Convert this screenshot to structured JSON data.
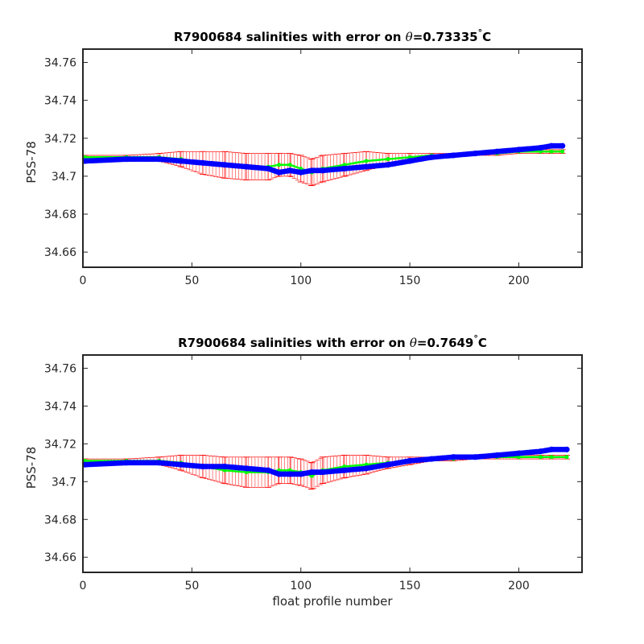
{
  "chart_data": [
    {
      "type": "scatter",
      "title_prefix": "R7900684 salinities with error on ",
      "theta_symbol": "θ",
      "theta_value": "=0.73335",
      "degree_symbol": "°",
      "unit_letter": "C",
      "ylabel": "PSS-78",
      "xlabel": "",
      "xlim": [
        0,
        229
      ],
      "ylim": [
        34.652,
        34.767
      ],
      "xticks": [
        0,
        50,
        100,
        150,
        200
      ],
      "yticks": [
        34.66,
        34.68,
        34.7,
        34.72,
        34.74,
        34.76
      ],
      "ytick_labels": [
        "34.66",
        "34.68",
        "34.7",
        "34.72",
        "34.74",
        "34.76"
      ],
      "grid": false,
      "colors": {
        "float": "#0000ff",
        "mapped": "#00ff00",
        "error": "#ff0000",
        "axes": "#262626"
      },
      "series": [
        {
          "role": "float",
          "x": [
            1,
            20,
            35,
            45,
            55,
            65,
            75,
            85,
            90,
            95,
            100,
            105,
            110,
            120,
            130,
            140,
            150,
            160,
            170,
            180,
            190,
            200,
            210,
            215,
            220
          ],
          "values": [
            34.708,
            34.709,
            34.709,
            34.708,
            34.707,
            34.706,
            34.705,
            34.704,
            34.702,
            34.703,
            34.702,
            34.703,
            34.703,
            34.704,
            34.705,
            34.706,
            34.708,
            34.71,
            34.711,
            34.712,
            34.713,
            34.714,
            34.715,
            34.716,
            34.716
          ]
        },
        {
          "role": "mapped",
          "x": [
            1,
            20,
            35,
            45,
            55,
            65,
            75,
            85,
            90,
            95,
            100,
            105,
            110,
            120,
            130,
            140,
            150,
            160,
            170,
            180,
            190,
            200,
            210,
            215,
            220
          ],
          "values": [
            34.71,
            34.71,
            34.71,
            34.709,
            34.707,
            34.706,
            34.705,
            34.705,
            34.706,
            34.706,
            34.704,
            34.702,
            34.704,
            34.706,
            34.708,
            34.709,
            34.71,
            34.711,
            34.711,
            34.712,
            34.712,
            34.713,
            34.713,
            34.713,
            34.713
          ],
          "error": [
            0.001,
            0.001,
            0.002,
            0.004,
            0.006,
            0.007,
            0.007,
            0.007,
            0.006,
            0.006,
            0.007,
            0.007,
            0.007,
            0.006,
            0.005,
            0.003,
            0.002,
            0.001,
            0.001,
            0.001,
            0.001,
            0.001,
            0.001,
            0.001,
            0.001
          ]
        }
      ]
    },
    {
      "type": "scatter",
      "title_prefix": "R7900684 salinities with error on ",
      "theta_symbol": "θ",
      "theta_value": "=0.7649",
      "degree_symbol": "°",
      "unit_letter": "C",
      "ylabel": "PSS-78",
      "xlabel": "float profile number",
      "xlim": [
        0,
        229
      ],
      "ylim": [
        34.652,
        34.767
      ],
      "xticks": [
        0,
        50,
        100,
        150,
        200
      ],
      "yticks": [
        34.66,
        34.68,
        34.7,
        34.72,
        34.74,
        34.76
      ],
      "ytick_labels": [
        "34.66",
        "34.68",
        "34.7",
        "34.72",
        "34.74",
        "34.76"
      ],
      "grid": false,
      "colors": {
        "float": "#0000ff",
        "mapped": "#00ff00",
        "error": "#ff0000",
        "axes": "#262626"
      },
      "series": [
        {
          "role": "float",
          "x": [
            1,
            20,
            35,
            45,
            55,
            65,
            75,
            85,
            90,
            95,
            100,
            105,
            110,
            120,
            130,
            140,
            150,
            160,
            170,
            180,
            190,
            200,
            210,
            215,
            222
          ],
          "values": [
            34.709,
            34.71,
            34.71,
            34.709,
            34.708,
            34.708,
            34.707,
            34.706,
            34.704,
            34.704,
            34.704,
            34.705,
            34.705,
            34.706,
            34.707,
            34.709,
            34.711,
            34.712,
            34.713,
            34.713,
            34.714,
            34.715,
            34.716,
            34.717,
            34.717
          ]
        },
        {
          "role": "mapped",
          "x": [
            1,
            20,
            35,
            45,
            55,
            65,
            75,
            85,
            90,
            95,
            100,
            105,
            110,
            120,
            130,
            140,
            150,
            160,
            170,
            180,
            190,
            200,
            210,
            215,
            222
          ],
          "values": [
            34.711,
            34.711,
            34.711,
            34.71,
            34.708,
            34.706,
            34.705,
            34.705,
            34.706,
            34.706,
            34.705,
            34.703,
            34.706,
            34.708,
            34.709,
            34.71,
            34.711,
            34.712,
            34.712,
            34.713,
            34.713,
            34.713,
            34.713,
            34.713,
            34.713
          ],
          "error": [
            0.001,
            0.001,
            0.002,
            0.004,
            0.006,
            0.007,
            0.008,
            0.008,
            0.007,
            0.007,
            0.007,
            0.007,
            0.007,
            0.006,
            0.005,
            0.003,
            0.002,
            0.001,
            0.001,
            0.001,
            0.001,
            0.001,
            0.001,
            0.001,
            0.001
          ]
        }
      ]
    }
  ]
}
